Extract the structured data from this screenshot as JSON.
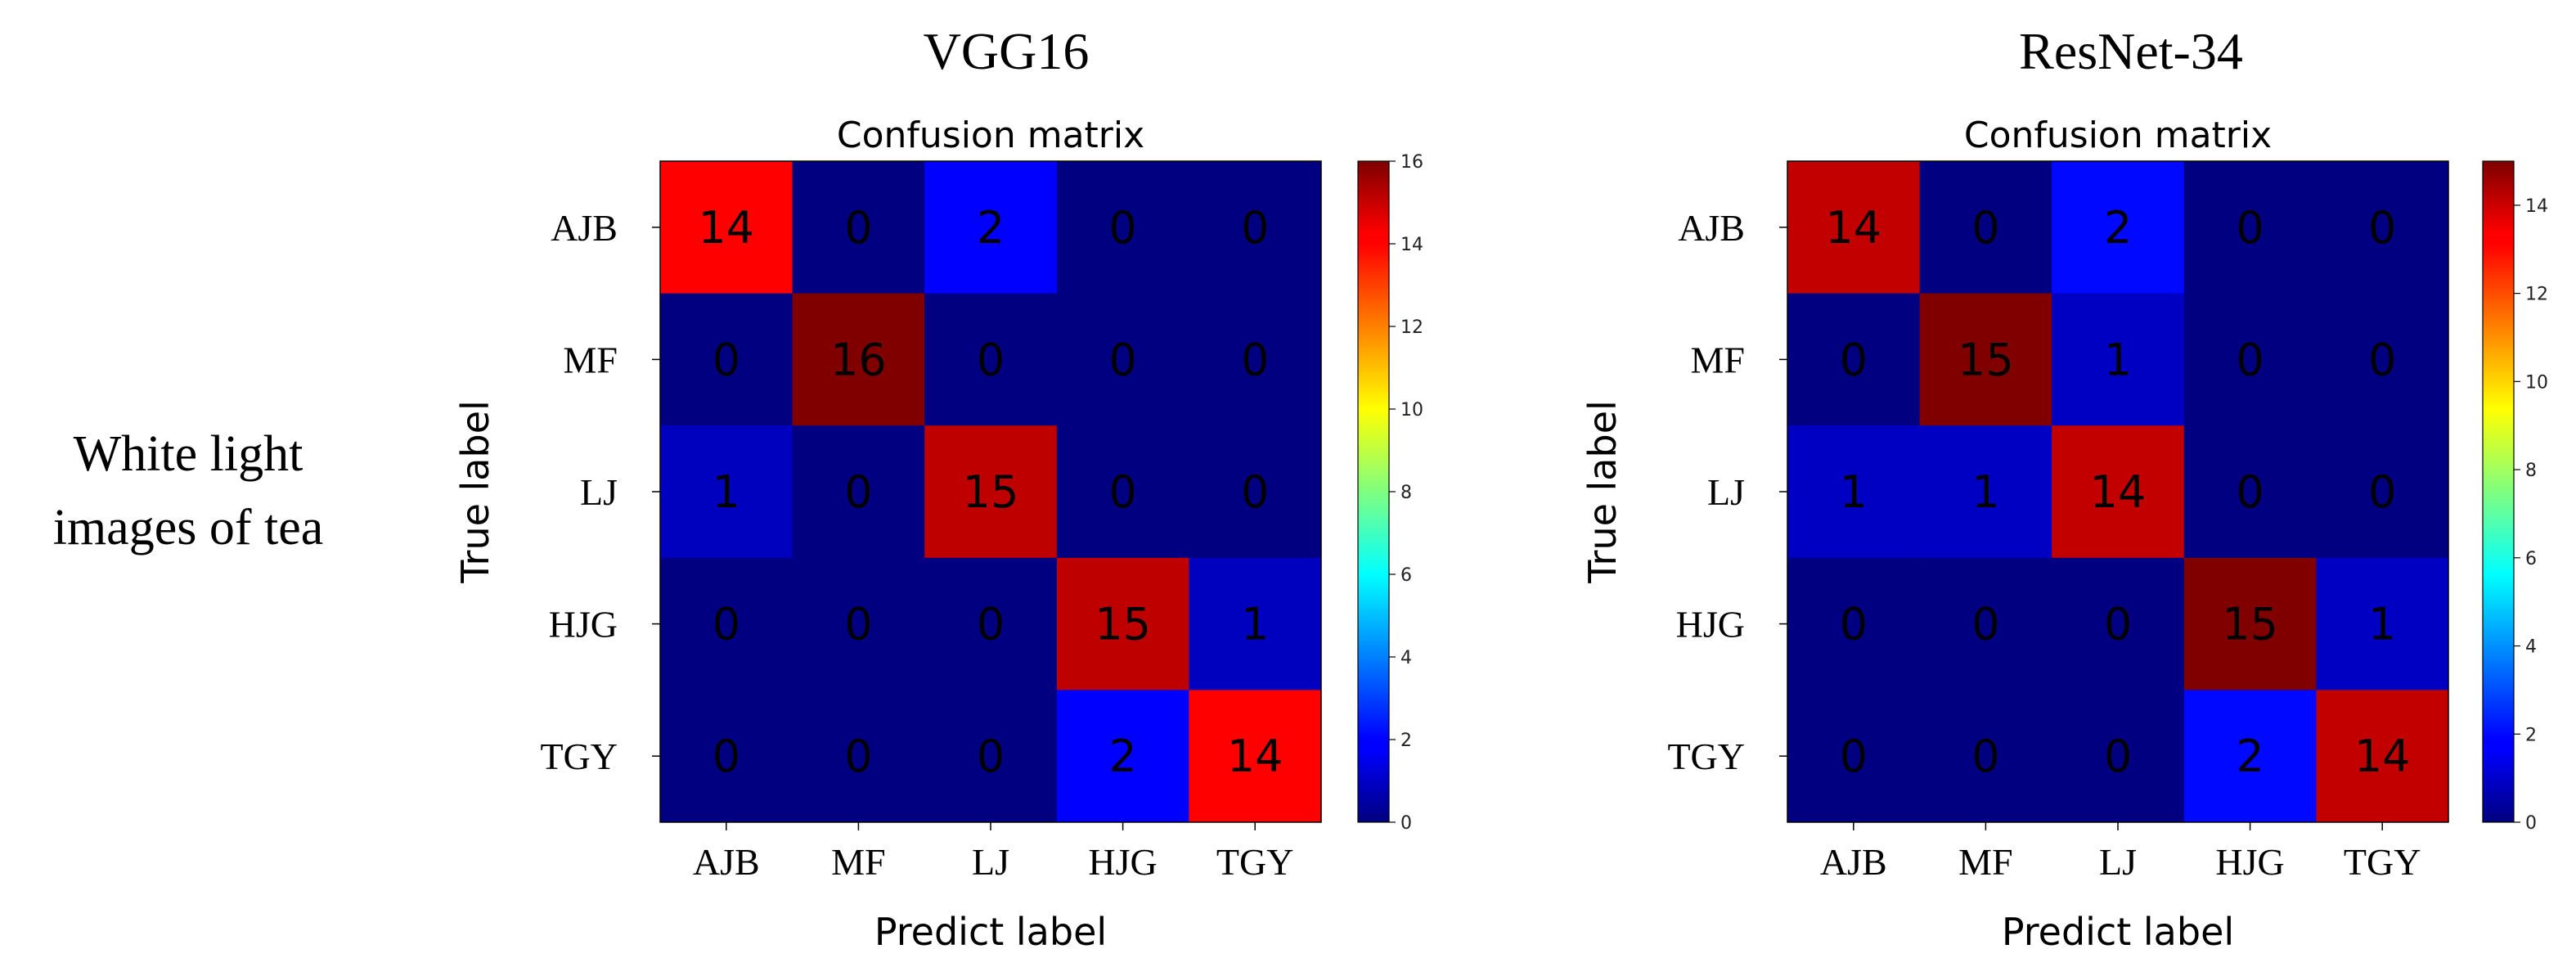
{
  "row_label": [
    "White light",
    "images of tea"
  ],
  "chart_data": [
    {
      "type": "heatmap",
      "model": "VGG16",
      "title": "Confusion matrix",
      "xlabel": "Predict label",
      "ylabel": "True label",
      "x_categories": [
        "AJB",
        "MF",
        "LJ",
        "HJG",
        "TGY"
      ],
      "y_categories": [
        "AJB",
        "MF",
        "LJ",
        "HJG",
        "TGY"
      ],
      "matrix": [
        [
          14,
          0,
          2,
          0,
          0
        ],
        [
          0,
          16,
          0,
          0,
          0
        ],
        [
          1,
          0,
          15,
          0,
          0
        ],
        [
          0,
          0,
          0,
          15,
          1
        ],
        [
          0,
          0,
          0,
          2,
          14
        ]
      ],
      "colormap": "jet",
      "vmin": 0,
      "vmax": 16,
      "colorbar_ticks": [
        "0",
        "2",
        "4",
        "6",
        "8",
        "10",
        "12",
        "14",
        "16"
      ]
    },
    {
      "type": "heatmap",
      "model": "ResNet-34",
      "title": "Confusion matrix",
      "xlabel": "Predict label",
      "ylabel": "True label",
      "x_categories": [
        "AJB",
        "MF",
        "LJ",
        "HJG",
        "TGY"
      ],
      "y_categories": [
        "AJB",
        "MF",
        "LJ",
        "HJG",
        "TGY"
      ],
      "matrix": [
        [
          14,
          0,
          2,
          0,
          0
        ],
        [
          0,
          15,
          1,
          0,
          0
        ],
        [
          1,
          1,
          14,
          0,
          0
        ],
        [
          0,
          0,
          0,
          15,
          1
        ],
        [
          0,
          0,
          0,
          2,
          14
        ]
      ],
      "colormap": "jet",
      "vmin": 0,
      "vmax": 15,
      "colorbar_ticks": [
        "0",
        "2",
        "4",
        "6",
        "8",
        "10",
        "12",
        "14"
      ]
    }
  ]
}
